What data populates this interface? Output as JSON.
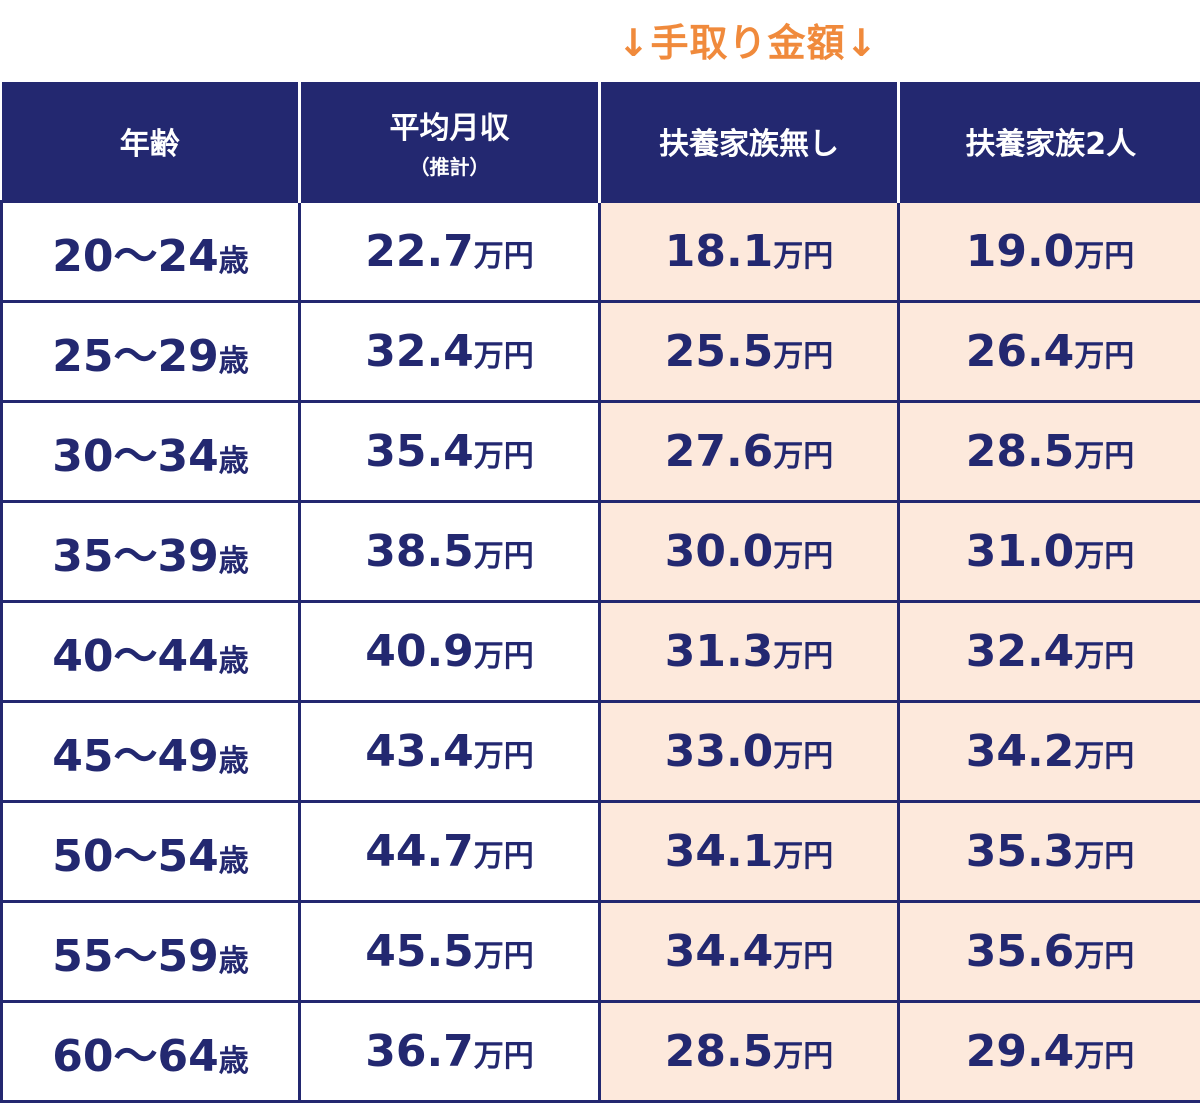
{
  "caption": "↓手取り金額↓",
  "colors": {
    "header_bg": "#232870",
    "text": "#232870",
    "accent": "#f08a3c",
    "highlight_bg": "#fde9dc"
  },
  "headers": [
    {
      "label": "年齢",
      "sub": ""
    },
    {
      "label": "平均月収",
      "sub": "（推計）"
    },
    {
      "label": "扶養家族無し",
      "sub": ""
    },
    {
      "label": "扶養家族2人",
      "sub": ""
    }
  ],
  "rows": [
    {
      "age": "20〜24",
      "age_unit": "歳",
      "income": "22.7",
      "none": "18.1",
      "two": "19.0",
      "unit": "万円"
    },
    {
      "age": "25〜29",
      "age_unit": "歳",
      "income": "32.4",
      "none": "25.5",
      "two": "26.4",
      "unit": "万円"
    },
    {
      "age": "30〜34",
      "age_unit": "歳",
      "income": "35.4",
      "none": "27.6",
      "two": "28.5",
      "unit": "万円"
    },
    {
      "age": "35〜39",
      "age_unit": "歳",
      "income": "38.5",
      "none": "30.0",
      "two": "31.0",
      "unit": "万円"
    },
    {
      "age": "40〜44",
      "age_unit": "歳",
      "income": "40.9",
      "none": "31.3",
      "two": "32.4",
      "unit": "万円"
    },
    {
      "age": "45〜49",
      "age_unit": "歳",
      "income": "43.4",
      "none": "33.0",
      "two": "34.2",
      "unit": "万円"
    },
    {
      "age": "50〜54",
      "age_unit": "歳",
      "income": "44.7",
      "none": "34.1",
      "two": "35.3",
      "unit": "万円"
    },
    {
      "age": "55〜59",
      "age_unit": "歳",
      "income": "45.5",
      "none": "34.4",
      "two": "35.6",
      "unit": "万円"
    },
    {
      "age": "60〜64",
      "age_unit": "歳",
      "income": "36.7",
      "none": "28.5",
      "two": "29.4",
      "unit": "万円"
    }
  ],
  "chart_data": {
    "type": "table",
    "title": "↓手取り金額↓",
    "columns": [
      "年齢",
      "平均月収（推計）",
      "扶養家族無し",
      "扶養家族2人"
    ],
    "categories": [
      "20〜24歳",
      "25〜29歳",
      "30〜34歳",
      "35〜39歳",
      "40〜44歳",
      "45〜49歳",
      "50〜54歳",
      "55〜59歳",
      "60〜64歳"
    ],
    "unit": "万円",
    "series": [
      {
        "name": "平均月収（推計）",
        "values": [
          22.7,
          32.4,
          35.4,
          38.5,
          40.9,
          43.4,
          44.7,
          45.5,
          36.7
        ]
      },
      {
        "name": "扶養家族無し",
        "values": [
          18.1,
          25.5,
          27.6,
          30.0,
          31.3,
          33.0,
          34.1,
          34.4,
          28.5
        ]
      },
      {
        "name": "扶養家族2人",
        "values": [
          19.0,
          26.4,
          28.5,
          31.0,
          32.4,
          34.2,
          35.3,
          35.6,
          29.4
        ]
      }
    ]
  }
}
